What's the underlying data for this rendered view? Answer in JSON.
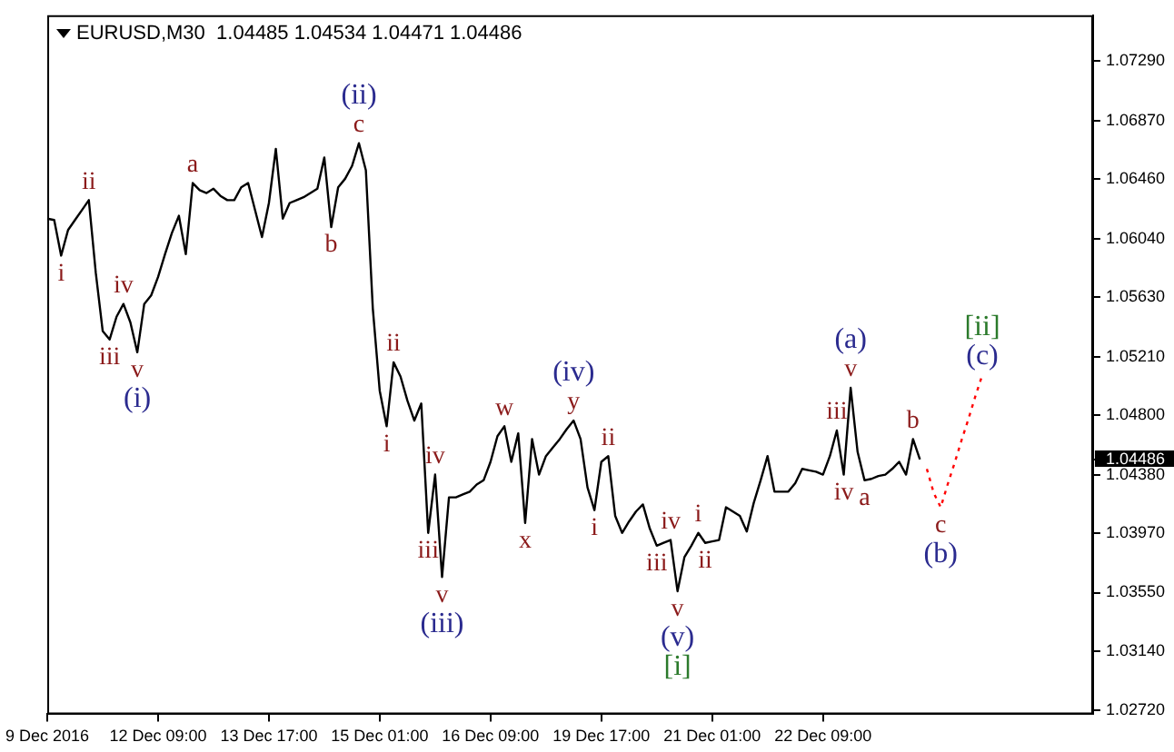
{
  "chart_data": {
    "type": "line",
    "title": "EURUSD,M30  1.04485 1.04534 1.04471 1.04486",
    "marker": "none",
    "categories": [
      "9 Dec 2016",
      null,
      null,
      null,
      null,
      null,
      null,
      null,
      null,
      null,
      null,
      null,
      null,
      null,
      null,
      null,
      "12 Dec 09:00",
      null,
      null,
      null,
      null,
      null,
      null,
      null,
      null,
      null,
      null,
      null,
      null,
      null,
      null,
      null,
      "13 Dec 17:00",
      null,
      null,
      null,
      null,
      null,
      null,
      null,
      null,
      null,
      null,
      null,
      null,
      null,
      null,
      null,
      "15 Dec 01:00",
      null,
      null,
      null,
      null,
      null,
      null,
      null,
      null,
      null,
      null,
      null,
      null,
      null,
      null,
      null,
      "16 Dec 09:00",
      null,
      null,
      null,
      null,
      null,
      null,
      null,
      null,
      null,
      null,
      null,
      null,
      null,
      null,
      null,
      "19 Dec 17:00",
      null,
      null,
      null,
      null,
      null,
      null,
      null,
      null,
      null,
      null,
      null,
      null,
      null,
      null,
      null,
      "21 Dec 01:00",
      null,
      null,
      null,
      null,
      null,
      null,
      null,
      null,
      null,
      null,
      null,
      null,
      null,
      null,
      null,
      "22 Dec 09:00",
      null,
      null,
      null,
      null,
      null,
      null,
      null,
      null,
      null,
      null,
      null,
      null,
      null,
      null,
      null,
      null,
      null,
      null,
      null,
      null,
      null,
      null,
      null,
      null,
      null,
      null,
      null,
      null,
      null,
      null,
      null,
      null,
      null,
      null,
      null,
      null,
      null,
      null,
      null
    ],
    "ylim": [
      1.02695,
      1.0761
    ],
    "yticks": [
      {
        "value": 1.0272,
        "label": "1.02720"
      },
      {
        "value": 1.0314,
        "label": "1.03140"
      },
      {
        "value": 1.0355,
        "label": "1.03550"
      },
      {
        "value": 1.0397,
        "label": "1.03970"
      },
      {
        "value": 1.0438,
        "label": "1.04380"
      },
      {
        "value": 1.04486,
        "label": "1.04486"
      },
      {
        "value": 1.048,
        "label": "1.04800"
      },
      {
        "value": 1.0521,
        "label": "1.05210"
      },
      {
        "value": 1.0563,
        "label": "1.05630"
      },
      {
        "value": 1.0604,
        "label": "1.06040"
      },
      {
        "value": 1.0646,
        "label": "1.06460"
      },
      {
        "value": 1.0687,
        "label": "1.06870"
      },
      {
        "value": 1.0729,
        "label": "1.07290"
      }
    ],
    "series": [
      {
        "color": "#000000",
        "line_style": "solid",
        "values": [
          1.0618,
          1.0617,
          1.0592,
          1.061,
          1.0617,
          1.0624,
          1.0631,
          1.058,
          1.0539,
          1.0533,
          1.0549,
          1.0558,
          1.0545,
          1.0524,
          1.0558,
          1.0564,
          1.0577,
          1.0593,
          1.0608,
          1.062,
          1.0593,
          1.0643,
          1.0638,
          1.0636,
          1.0639,
          1.0634,
          1.0631,
          1.0631,
          1.064,
          1.0643,
          1.0624,
          1.0605,
          1.0629,
          1.0667,
          1.0618,
          1.0629,
          1.0631,
          1.0633,
          1.0636,
          1.0639,
          1.0661,
          1.0612,
          1.064,
          1.0646,
          1.0655,
          1.0671,
          1.0652,
          1.0555,
          1.0497,
          1.0472,
          1.0517,
          1.0507,
          1.049,
          1.0476,
          1.0488,
          1.0397,
          1.0438,
          1.0366,
          1.0422,
          1.0422,
          1.0424,
          1.0426,
          1.0431,
          1.0434,
          1.0447,
          1.0465,
          1.0472,
          1.0447,
          1.0467,
          1.0404,
          1.0463,
          1.0438,
          1.0451,
          1.0457,
          1.0463,
          1.047,
          1.0476,
          1.0463,
          1.0429,
          1.0413,
          1.0447,
          1.0451,
          1.0409,
          1.0397,
          1.0405,
          1.0412,
          1.0417,
          1.04,
          1.0388,
          1.039,
          1.0392,
          1.0356,
          1.038,
          1.0388,
          1.0397,
          1.039,
          1.0391,
          1.0392,
          1.0415,
          1.0412,
          1.0409,
          1.0398,
          1.0418,
          1.0434,
          1.0451,
          1.0426,
          1.0426,
          1.0426,
          1.0432,
          1.0442,
          1.0441,
          1.044,
          1.0438,
          1.0451,
          1.0469,
          1.0438,
          1.0499,
          1.0454,
          1.0434,
          1.0435,
          1.0437,
          1.0438,
          1.0442,
          1.0447,
          1.0438,
          1.0463,
          1.04486,
          null,
          null,
          null,
          null,
          null,
          null,
          null,
          null,
          null,
          null,
          null,
          null,
          null,
          null,
          null,
          null,
          null,
          null,
          null,
          null,
          null,
          null,
          null,
          null,
          null
        ]
      },
      {
        "color": "#ff0000",
        "line_style": "dotted",
        "values": [
          null,
          null,
          null,
          null,
          null,
          null,
          null,
          null,
          null,
          null,
          null,
          null,
          null,
          null,
          null,
          null,
          null,
          null,
          null,
          null,
          null,
          null,
          null,
          null,
          null,
          null,
          null,
          null,
          null,
          null,
          null,
          null,
          null,
          null,
          null,
          null,
          null,
          null,
          null,
          null,
          null,
          null,
          null,
          null,
          null,
          null,
          null,
          null,
          null,
          null,
          null,
          null,
          null,
          null,
          null,
          null,
          null,
          null,
          null,
          null,
          null,
          null,
          null,
          null,
          null,
          null,
          null,
          null,
          null,
          null,
          null,
          null,
          null,
          null,
          null,
          null,
          null,
          null,
          null,
          null,
          null,
          null,
          null,
          null,
          null,
          null,
          null,
          null,
          null,
          null,
          null,
          null,
          null,
          null,
          null,
          null,
          null,
          null,
          null,
          null,
          null,
          null,
          null,
          null,
          null,
          null,
          null,
          null,
          null,
          null,
          null,
          null,
          null,
          null,
          null,
          null,
          null,
          null,
          null,
          null,
          null,
          null,
          null,
          null,
          null,
          null,
          null,
          1.0442,
          1.0425,
          1.0415,
          1.0431,
          1.0446,
          1.0462,
          1.0477,
          1.0493,
          1.0508,
          null,
          null,
          null,
          null,
          null,
          null,
          null,
          null,
          null,
          null,
          null,
          null,
          null,
          null,
          null,
          null
        ]
      }
    ],
    "annotations": [
      {
        "text": "i",
        "y": 1.0592
      },
      {
        "text": "ii",
        "y": 1.0631
      },
      {
        "text": "iii",
        "y": 1.0533
      },
      {
        "text": "iv",
        "y": 1.0558
      },
      {
        "text": "v",
        "y": 1.0524
      },
      {
        "text": "(i)",
        "y": 1.0524
      },
      {
        "text": "a",
        "y": 1.0643
      },
      {
        "text": "b",
        "y": 1.0612
      },
      {
        "text": "c",
        "y": 1.0671
      },
      {
        "text": "(ii)",
        "y": 1.0671
      },
      {
        "text": "i",
        "y": 1.0472
      },
      {
        "text": "ii",
        "y": 1.0517
      },
      {
        "text": "iii",
        "y": 1.0397
      },
      {
        "text": "iv",
        "y": 1.0438
      },
      {
        "text": "v",
        "y": 1.0366
      },
      {
        "text": "(iii)",
        "y": 1.0366
      },
      {
        "text": "w",
        "y": 1.0472
      },
      {
        "text": "x",
        "y": 1.0404
      },
      {
        "text": "y",
        "y": 1.0476
      },
      {
        "text": "(iv)",
        "y": 1.0476
      },
      {
        "text": "i",
        "y": 1.0413
      },
      {
        "text": "ii",
        "y": 1.0451
      },
      {
        "text": "iii",
        "y": 1.0388
      },
      {
        "text": "iv",
        "y": 1.0392
      },
      {
        "text": "v",
        "y": 1.0356
      },
      {
        "text": "(v)",
        "y": 1.0356
      },
      {
        "text": "[i]",
        "y": 1.0356
      },
      {
        "text": "i",
        "y": 1.0397
      },
      {
        "text": "ii",
        "y": 1.039
      },
      {
        "text": "iii",
        "y": 1.0469
      },
      {
        "text": "iv",
        "y": 1.0438
      },
      {
        "text": "v",
        "y": 1.0499
      },
      {
        "text": "(a)",
        "y": 1.0499
      },
      {
        "text": "a",
        "y": 1.0434
      },
      {
        "text": "b",
        "y": 1.0463
      },
      {
        "text": "c",
        "y": 1.0415
      },
      {
        "text": "(b)",
        "y": 1.0415
      },
      {
        "text": "(c)",
        "y": 1.0508
      },
      {
        "text": "[ii]",
        "y": 1.0508
      }
    ]
  }
}
